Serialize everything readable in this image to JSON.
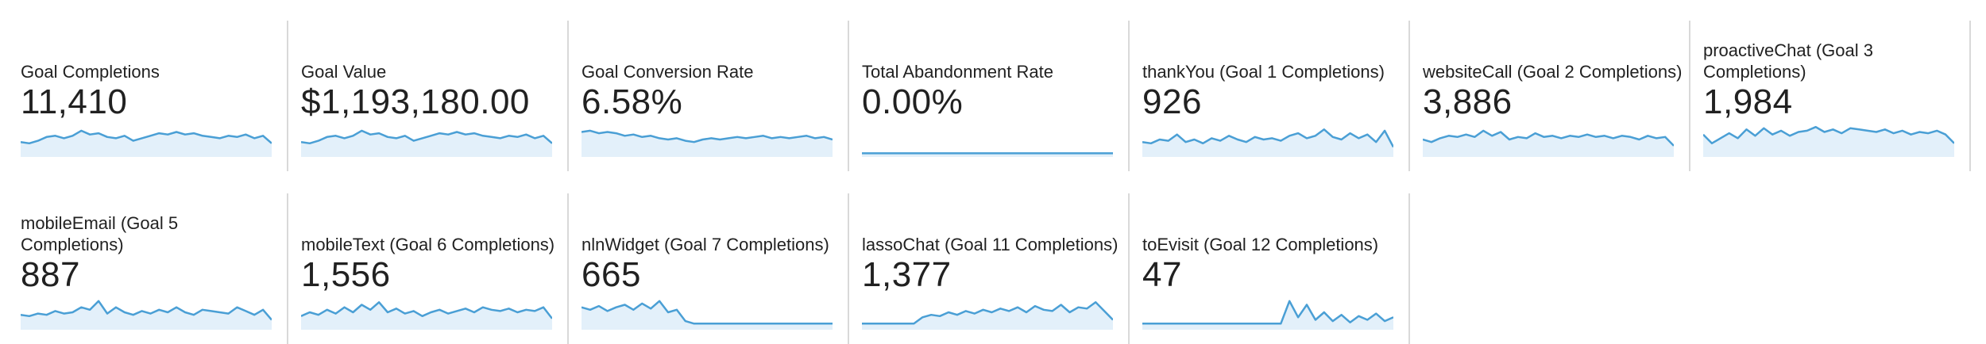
{
  "accent_color": "#4a9fd5",
  "fill_color": "#e3f0fa",
  "row1": [
    {
      "title": "Goal Completions",
      "value": "11,410",
      "series": [
        10,
        9,
        11,
        14,
        15,
        13,
        15,
        19,
        16,
        17,
        14,
        13,
        15,
        11,
        13,
        15,
        17,
        16,
        18,
        16,
        17,
        15,
        14,
        13,
        15,
        14,
        16,
        13,
        15,
        9
      ]
    },
    {
      "title": "Goal Value",
      "value": "$1,193,180.00",
      "series": [
        10,
        9,
        11,
        14,
        15,
        13,
        15,
        19,
        16,
        17,
        14,
        13,
        15,
        11,
        13,
        15,
        17,
        16,
        18,
        16,
        17,
        15,
        14,
        13,
        15,
        14,
        16,
        13,
        15,
        9
      ]
    },
    {
      "title": "Goal Conversion Rate",
      "value": "6.58%",
      "series": [
        18,
        19,
        17,
        18,
        17,
        15,
        16,
        14,
        15,
        13,
        12,
        13,
        11,
        10,
        12,
        13,
        12,
        13,
        14,
        13,
        14,
        15,
        13,
        14,
        13,
        14,
        15,
        13,
        14,
        12
      ]
    },
    {
      "title": "Total Abandonment Rate",
      "value": "0.00%",
      "series": [
        1,
        1,
        1,
        1,
        1,
        1,
        1,
        1,
        1,
        1,
        1,
        1,
        1,
        1,
        1,
        1,
        1,
        1,
        1,
        1,
        1,
        1,
        1,
        1,
        1,
        1,
        1,
        1,
        1,
        1
      ]
    },
    {
      "title": "thankYou (Goal 1 Completions)",
      "value": "926",
      "series": [
        10,
        9,
        12,
        11,
        16,
        10,
        12,
        9,
        13,
        11,
        15,
        12,
        10,
        14,
        12,
        13,
        11,
        15,
        17,
        13,
        15,
        20,
        14,
        12,
        17,
        13,
        16,
        10,
        19,
        6
      ]
    },
    {
      "title": "websiteCall (Goal 2 Completions)",
      "value": "3,886",
      "series": [
        12,
        10,
        13,
        15,
        14,
        16,
        14,
        19,
        15,
        18,
        12,
        14,
        13,
        17,
        14,
        15,
        13,
        15,
        14,
        16,
        14,
        15,
        13,
        15,
        14,
        12,
        15,
        13,
        14,
        7
      ]
    },
    {
      "title": "proactiveChat (Goal 3 Completions)",
      "value": "1,984",
      "series": [
        16,
        9,
        13,
        17,
        13,
        20,
        15,
        21,
        16,
        19,
        15,
        18,
        19,
        22,
        18,
        20,
        17,
        21,
        20,
        19,
        18,
        20,
        17,
        19,
        16,
        18,
        17,
        19,
        16,
        9
      ]
    }
  ],
  "row2": [
    {
      "title": "mobileEmail (Goal 5 Completions)",
      "value": "887",
      "series": [
        10,
        9,
        11,
        10,
        13,
        11,
        12,
        16,
        14,
        21,
        11,
        16,
        12,
        10,
        13,
        11,
        14,
        12,
        16,
        12,
        10,
        14,
        13,
        12,
        11,
        16,
        13,
        10,
        14,
        6
      ]
    },
    {
      "title": "mobileText (Goal 6 Completions)",
      "value": "1,556",
      "series": [
        9,
        12,
        10,
        14,
        11,
        16,
        12,
        18,
        14,
        20,
        12,
        15,
        11,
        13,
        9,
        12,
        14,
        11,
        13,
        15,
        12,
        16,
        14,
        13,
        15,
        12,
        14,
        13,
        16,
        7
      ]
    },
    {
      "title": "nlnWidget (Goal 7 Completions)",
      "value": "665",
      "series": [
        16,
        14,
        17,
        13,
        16,
        18,
        14,
        19,
        15,
        21,
        12,
        14,
        5,
        3,
        3,
        3,
        3,
        3,
        3,
        3,
        3,
        3,
        3,
        3,
        3,
        3,
        3,
        3,
        3,
        3
      ]
    },
    {
      "title": "lassoChat (Goal 11 Completions)",
      "value": "1,377",
      "series": [
        3,
        3,
        3,
        3,
        3,
        3,
        3,
        8,
        10,
        9,
        12,
        10,
        13,
        11,
        14,
        12,
        15,
        13,
        16,
        12,
        17,
        14,
        13,
        18,
        12,
        16,
        15,
        20,
        13,
        6
      ]
    },
    {
      "title": "toEvisit (Goal 12 Completions)",
      "value": "47",
      "series": [
        3,
        3,
        3,
        3,
        3,
        3,
        3,
        3,
        3,
        3,
        3,
        3,
        3,
        3,
        3,
        3,
        3,
        21,
        8,
        18,
        6,
        12,
        5,
        10,
        4,
        9,
        6,
        11,
        5,
        8
      ]
    }
  ]
}
